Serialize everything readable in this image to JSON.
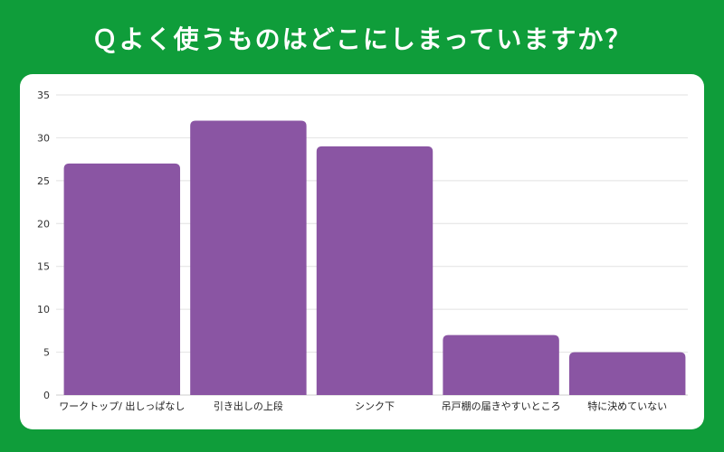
{
  "title": "Ｑよく使うものはどこにしまっていますか？",
  "colors": {
    "background": "#0f9d3a",
    "card": "#ffffff",
    "bar": "#8a55a3",
    "grid": "#e2e2e2"
  },
  "chart_data": {
    "type": "bar",
    "categories": [
      "ワークトップ/ 出しっぱなし",
      "引き出しの上段",
      "シンク下",
      "吊戸棚の届きやすいところ",
      "特に決めていない"
    ],
    "values": [
      27,
      32,
      29,
      7,
      5
    ],
    "ylim": [
      0,
      35
    ],
    "yticks": [
      0,
      5,
      10,
      15,
      20,
      25,
      30,
      35
    ],
    "grid": true
  }
}
